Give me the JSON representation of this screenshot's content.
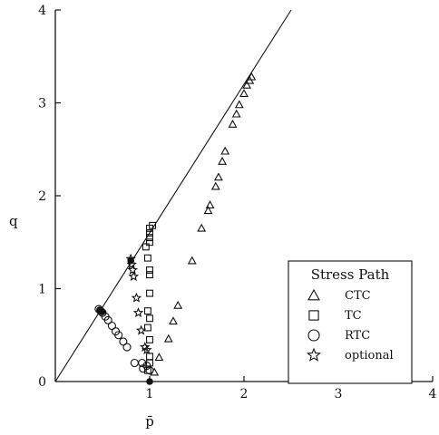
{
  "chart_data": {
    "type": "scatter",
    "title": "",
    "xlabel": "p̄",
    "ylabel": "q",
    "xlim": [
      0,
      4
    ],
    "ylim": [
      0,
      4
    ],
    "xticks": [
      "1",
      "2",
      "3",
      "4"
    ],
    "yticks": [
      "0",
      "1",
      "2",
      "3",
      "4"
    ],
    "grid": false,
    "legend": {
      "title": "Stress Path",
      "position": "bottom-right"
    },
    "reference_line": {
      "points": [
        [
          0,
          0
        ],
        [
          2.5,
          4
        ]
      ]
    },
    "series": [
      {
        "name": "CTC",
        "marker": "triangle",
        "points": [
          [
            1.05,
            0.1
          ],
          [
            1.1,
            0.26
          ],
          [
            1.2,
            0.46
          ],
          [
            1.25,
            0.65
          ],
          [
            1.3,
            0.82
          ],
          [
            1.45,
            1.3
          ],
          [
            1.55,
            1.65
          ],
          [
            1.62,
            1.84
          ],
          [
            1.64,
            1.9
          ],
          [
            1.7,
            2.1
          ],
          [
            1.73,
            2.2
          ],
          [
            1.77,
            2.37
          ],
          [
            1.8,
            2.48
          ],
          [
            1.88,
            2.77
          ],
          [
            1.92,
            2.88
          ],
          [
            1.95,
            2.98
          ],
          [
            2.0,
            3.1
          ],
          [
            2.03,
            3.19
          ],
          [
            2.06,
            3.24
          ],
          [
            2.08,
            3.28
          ]
        ]
      },
      {
        "name": "TC",
        "marker": "square",
        "points": [
          [
            0.98,
            0.12
          ],
          [
            1.0,
            0.2
          ],
          [
            1.0,
            0.27
          ],
          [
            1.0,
            0.45
          ],
          [
            0.98,
            0.58
          ],
          [
            1.0,
            0.68
          ],
          [
            0.98,
            0.76
          ],
          [
            1.0,
            0.95
          ],
          [
            1.0,
            1.15
          ],
          [
            1.0,
            1.2
          ],
          [
            0.98,
            1.33
          ],
          [
            0.96,
            1.45
          ],
          [
            1.0,
            1.5
          ],
          [
            1.0,
            1.55
          ],
          [
            1.0,
            1.6
          ],
          [
            1.0,
            1.65
          ],
          [
            1.03,
            1.68
          ]
        ]
      },
      {
        "name": "RTC",
        "marker": "circle",
        "points": [
          [
            0.46,
            0.78
          ],
          [
            0.48,
            0.76
          ],
          [
            0.5,
            0.74
          ],
          [
            0.53,
            0.7
          ],
          [
            0.56,
            0.66
          ],
          [
            0.6,
            0.6
          ],
          [
            0.64,
            0.54
          ],
          [
            0.67,
            0.5
          ],
          [
            0.72,
            0.43
          ],
          [
            0.76,
            0.37
          ],
          [
            0.84,
            0.2
          ],
          [
            0.92,
            0.2
          ],
          [
            0.93,
            0.14
          ],
          [
            0.97,
            0.17
          ],
          [
            1.0,
            0.12
          ]
        ]
      },
      {
        "name": "optional",
        "marker": "star",
        "points": [
          [
            0.8,
            1.32
          ],
          [
            0.81,
            1.26
          ],
          [
            0.82,
            1.2
          ],
          [
            0.83,
            1.13
          ],
          [
            0.86,
            0.9
          ],
          [
            0.88,
            0.74
          ],
          [
            0.91,
            0.55
          ],
          [
            0.95,
            0.37
          ],
          [
            0.97,
            0.34
          ]
        ]
      }
    ],
    "filled_markers": [
      [
        0.47,
        0.77
      ],
      [
        0.5,
        0.75
      ],
      [
        0.8,
        1.3
      ],
      [
        1.0,
        0.0
      ]
    ]
  }
}
